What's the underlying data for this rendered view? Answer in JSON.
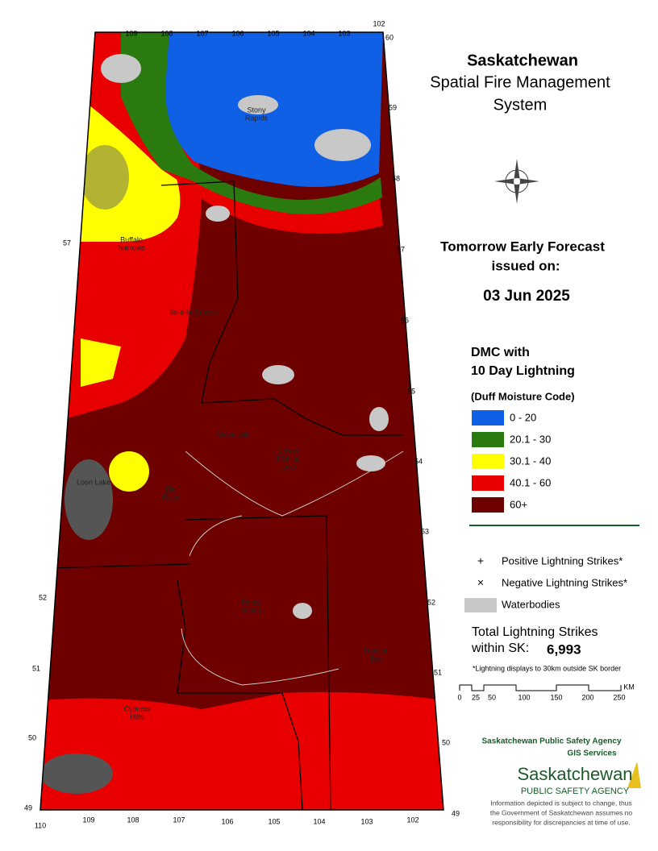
{
  "header": {
    "title": "Saskatchewan",
    "subtitle_lines": [
      "Spatial Fire Management",
      "System"
    ]
  },
  "forecast": {
    "lines": [
      "Tomorrow Early Forecast",
      "issued on:"
    ],
    "date": "03 Jun 2025"
  },
  "legend": {
    "title_lines": [
      "DMC with",
      "10 Day Lightning"
    ],
    "subtitle": "(Duff Moisture Code)",
    "classes": [
      {
        "label": "0 - 20",
        "color": "#1060e6"
      },
      {
        "label": "20.1 - 30",
        "color": "#2a7a10"
      },
      {
        "label": "30.1 - 40",
        "color": "#ffff00"
      },
      {
        "label": "40.1 - 60",
        "color": "#e80000"
      },
      {
        "label": "60+",
        "color": "#6e0000"
      }
    ]
  },
  "symbols": [
    {
      "symbol": "+",
      "label": "Positive Lightning Strikes*"
    },
    {
      "symbol": "×",
      "label": "Negative Lightning Strikes*"
    },
    {
      "label": "Waterbodies",
      "color": "#c8c8c8"
    }
  ],
  "total": {
    "lines": [
      "Total Lightning Strikes",
      "within SK:"
    ],
    "value": "6,993"
  },
  "note": "*Lightning displays to 30km outside SK border",
  "scale": {
    "ticks": [
      "0",
      "25",
      "50",
      "100",
      "150",
      "200",
      "250"
    ],
    "unit": "KM"
  },
  "agency": {
    "name": "Saskatchewan Public Safety Agency",
    "unit": "GIS  Services",
    "logo_lines": [
      "Saskatchewan",
      "PUBLIC SAFETY AGENCY"
    ]
  },
  "disclaimer": [
    "Information depicted is subject to change, thus",
    "the Government of Saskatchewan assumes no",
    "responsibility for discrepancies at time of use."
  ],
  "map": {
    "places": [
      {
        "lines": [
          "Stony",
          "Rapids"
        ]
      },
      {
        "lines": [
          "Buffalo",
          "Narrows"
        ]
      },
      {
        "lines": [
          "Ile-a-la-Crosse"
        ]
      },
      {
        "lines": [
          "Weyakwin"
        ]
      },
      {
        "lines": [
          "Lower",
          "Fishing",
          "Lake"
        ]
      },
      {
        "lines": [
          "Loon Lake"
        ]
      },
      {
        "lines": [
          "Big",
          "River"
        ]
      },
      {
        "lines": [
          "Prince",
          "Albert"
        ]
      },
      {
        "lines": [
          "Hudson",
          "Bay"
        ]
      },
      {
        "lines": [
          "Cypress",
          "Hills"
        ]
      }
    ],
    "latitudes_right": [
      "60",
      "59",
      "58",
      "57",
      "56",
      "55",
      "54",
      "53",
      "52",
      "51",
      "50",
      "49"
    ],
    "latitudes_left": [
      "57",
      "52",
      "51",
      "50",
      "49"
    ],
    "longitudes_top": [
      "109",
      "108",
      "107",
      "106",
      "105",
      "104",
      "103",
      "102"
    ],
    "longitudes_bottom": [
      "110",
      "109",
      "108",
      "107",
      "106",
      "105",
      "104",
      "103",
      "102"
    ]
  }
}
